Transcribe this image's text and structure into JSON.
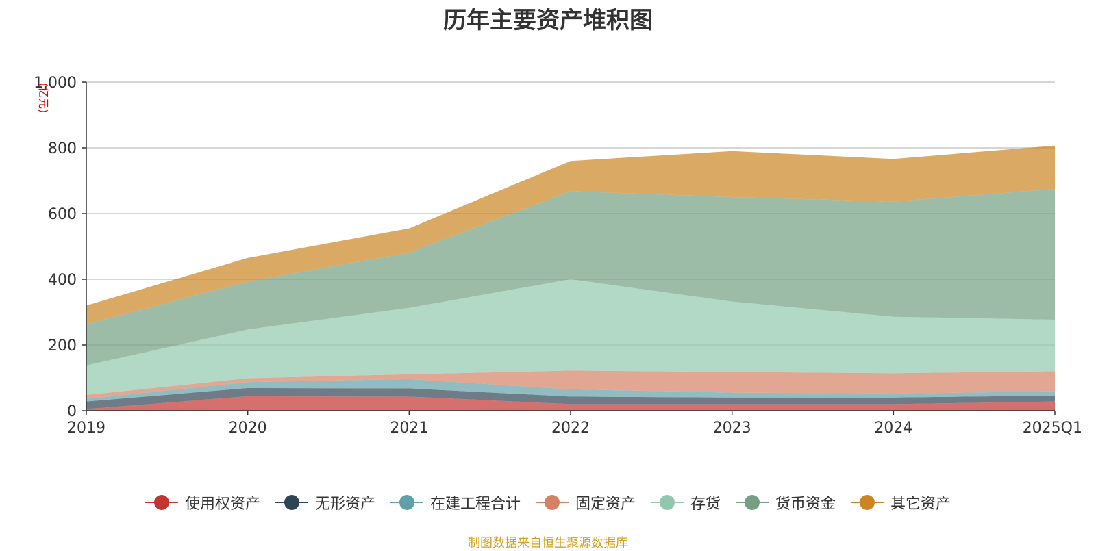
{
  "chart_data": {
    "type": "area",
    "stacked": true,
    "title": "历年主要资产堆积图",
    "unit": "(亿元)",
    "ylim": [
      0,
      1000
    ],
    "yticks": [
      "0",
      "200",
      "400",
      "600",
      "800",
      "1,000"
    ],
    "grid": true,
    "legend_position": "bottom",
    "categories": [
      "2019",
      "2020",
      "2021",
      "2022",
      "2023",
      "2024",
      "2025Q1"
    ],
    "series": [
      {
        "name": "使用权资产",
        "color": "#c23531",
        "values": [
          5,
          44,
          43,
          20,
          20,
          20,
          28
        ]
      },
      {
        "name": "无形资产",
        "color": "#2f4554",
        "values": [
          23,
          25,
          25,
          23,
          20,
          20,
          18
        ]
      },
      {
        "name": "在建工程合计",
        "color": "#61a0a8",
        "values": [
          8,
          18,
          28,
          22,
          15,
          12,
          13
        ]
      },
      {
        "name": "固定资产",
        "color": "#d48265",
        "values": [
          12,
          12,
          15,
          57,
          63,
          62,
          61
        ]
      },
      {
        "name": "存货",
        "color": "#91c7ae",
        "values": [
          90,
          148,
          202,
          278,
          214,
          172,
          157
        ]
      },
      {
        "name": "货币资金",
        "color": "#749f83",
        "values": [
          125,
          146,
          168,
          268,
          318,
          350,
          398
        ]
      },
      {
        "name": "其它资产",
        "color": "#ca8622",
        "values": [
          57,
          72,
          74,
          92,
          140,
          130,
          132
        ]
      }
    ]
  },
  "source_note": "制图数据来自恒生聚源数据库"
}
